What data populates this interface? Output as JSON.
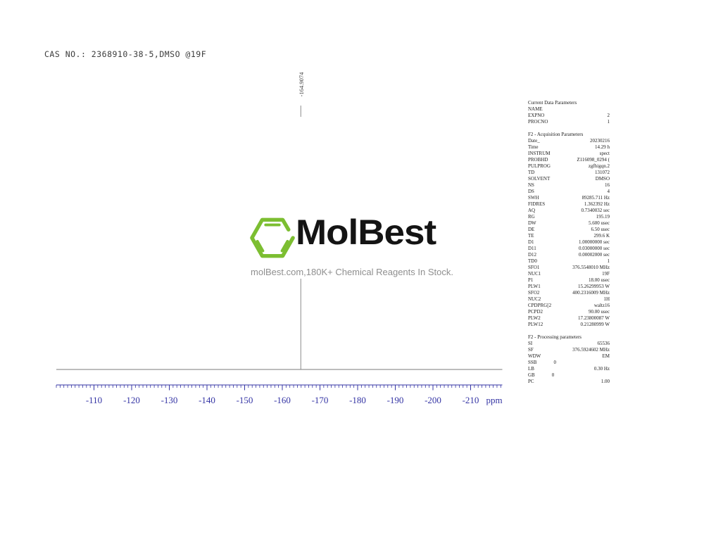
{
  "header": {
    "title": "CAS NO.: 2368910-38-5,DMSO @19F"
  },
  "logo": {
    "icon": "benzene-hexagon-icon",
    "brand": "MolBest",
    "tagline": "molBest.com,180K+ Chemical Reagents In Stock.",
    "hexagon_color": "#7cbe31"
  },
  "colors": {
    "axis_blue": "#3434a4",
    "trace_gray": "#8c8c8c",
    "baseline_gray": "#787878",
    "param_text": "#1a1a1a"
  },
  "chart_data": {
    "type": "line",
    "title": "19F NMR spectrum",
    "xlabel": "ppm",
    "x_axis": {
      "min": -100,
      "max": -218.5,
      "major_ticks": [
        -110,
        -120,
        -130,
        -140,
        -150,
        -160,
        -170,
        -180,
        -190,
        -200,
        -210
      ],
      "minor_tick_interval": 1,
      "unit_label": "ppm",
      "direction": "decreasing-right"
    },
    "peaks": [
      {
        "ppm": -164.9074,
        "label": "-164.9074"
      }
    ],
    "baseline": "flat",
    "grid": false,
    "legend": false
  },
  "parameters_panel": {
    "sections": [
      {
        "title": "Current Data Parameters",
        "rows": [
          [
            "NAME",
            ""
          ],
          [
            "EXPNO",
            "2"
          ],
          [
            "PROCNO",
            "1"
          ]
        ]
      },
      {
        "title": "F2 - Acquisition Parameters",
        "rows": [
          [
            "Date_",
            "20230216"
          ],
          [
            "Time",
            "14.29 h"
          ],
          [
            "INSTRUM",
            "spect"
          ],
          [
            "PROBHD",
            "Z116098_0294 ("
          ],
          [
            "PULPROG",
            "zgfhigqn.2"
          ],
          [
            "TD",
            "131072"
          ],
          [
            "SOLVENT",
            "DMSO"
          ],
          [
            "NS",
            "16"
          ],
          [
            "DS",
            "4"
          ],
          [
            "SWH",
            "89285.711 Hz"
          ],
          [
            "FIDRES",
            "1.362392 Hz"
          ],
          [
            "AQ",
            "0.7340032 sec"
          ],
          [
            "RG",
            "195.19"
          ],
          [
            "DW",
            "5.600 usec"
          ],
          [
            "DE",
            "6.50 usec"
          ],
          [
            "TE",
            "299.6 K"
          ],
          [
            "D1",
            "1.00000000 sec"
          ],
          [
            "D11",
            "0.03000000 sec"
          ],
          [
            "D12",
            "0.00002000 sec"
          ],
          [
            "TD0",
            "1"
          ],
          [
            "SFO1",
            "376.5548010 MHz"
          ],
          [
            "NUC1",
            "19F"
          ],
          [
            "P1",
            "18.00 usec"
          ],
          [
            "PLW1",
            "15.26299953 W"
          ],
          [
            "SFO2",
            "400.2316009 MHz"
          ],
          [
            "NUC2",
            "1H"
          ],
          [
            "CPDPRG[2",
            "waltz16"
          ],
          [
            "PCPD2",
            "90.00 usec"
          ],
          [
            "PLW2",
            "17.23800087 W"
          ],
          [
            "PLW12",
            "0.21280999 W"
          ]
        ]
      },
      {
        "title": "F2 - Processing parameters",
        "rows": [
          [
            "SI",
            "65536"
          ],
          [
            "SF",
            "376.5924602 MHz"
          ],
          [
            "WDW",
            "EM"
          ],
          [
            "SSB",
            "0",
            "near"
          ],
          [
            "LB",
            "0.30 Hz"
          ],
          [
            "GB",
            "0",
            "near"
          ],
          [
            "PC",
            "1.00"
          ]
        ]
      }
    ]
  }
}
